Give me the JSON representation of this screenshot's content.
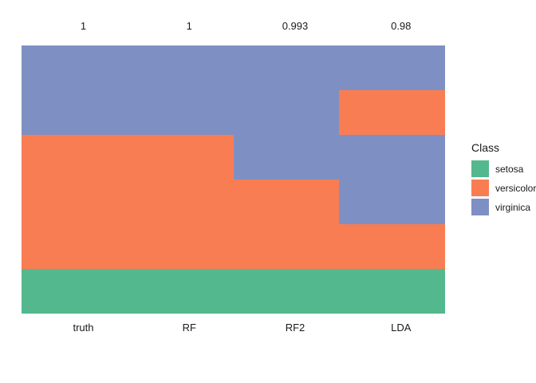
{
  "chart_data": {
    "type": "heatmap",
    "description": "Per-model class assignment tiles comparing ground truth and classifier predictions on iris classes; top annotations are accuracy values",
    "legend_title": "Class",
    "legend_position": "right",
    "background_color": "#ffffff",
    "text_color": "#1a1a1a",
    "classes": [
      {
        "name": "setosa",
        "color": "#53b88d"
      },
      {
        "name": "versicolor",
        "color": "#f97d53"
      },
      {
        "name": "virginica",
        "color": "#7e90c3"
      }
    ],
    "x_ticks": [
      "truth",
      "RF",
      "RF2",
      "LDA"
    ],
    "top_annotations": [
      "1",
      "1",
      "0.993",
      "0.98"
    ],
    "columns": [
      {
        "label": "truth",
        "accuracy": "1",
        "segments": [
          {
            "class": "virginica",
            "fraction": 0.3333
          },
          {
            "class": "versicolor",
            "fraction": 0.5
          },
          {
            "class": "setosa",
            "fraction": 0.1667
          }
        ]
      },
      {
        "label": "RF",
        "accuracy": "1",
        "segments": [
          {
            "class": "virginica",
            "fraction": 0.3333
          },
          {
            "class": "versicolor",
            "fraction": 0.5
          },
          {
            "class": "setosa",
            "fraction": 0.1667
          }
        ]
      },
      {
        "label": "RF2",
        "accuracy": "0.993",
        "segments": [
          {
            "class": "virginica",
            "fraction": 0.5
          },
          {
            "class": "versicolor",
            "fraction": 0.3333
          },
          {
            "class": "setosa",
            "fraction": 0.1667
          }
        ]
      },
      {
        "label": "LDA",
        "accuracy": "0.98",
        "segments": [
          {
            "class": "virginica",
            "fraction": 0.1667
          },
          {
            "class": "versicolor",
            "fraction": 0.1667
          },
          {
            "class": "virginica",
            "fraction": 0.3333
          },
          {
            "class": "versicolor",
            "fraction": 0.1667
          },
          {
            "class": "setosa",
            "fraction": 0.1667
          }
        ]
      }
    ]
  },
  "legend": {
    "title": "Class",
    "items": [
      {
        "label": "setosa"
      },
      {
        "label": "versicolor"
      },
      {
        "label": "virginica"
      }
    ]
  }
}
